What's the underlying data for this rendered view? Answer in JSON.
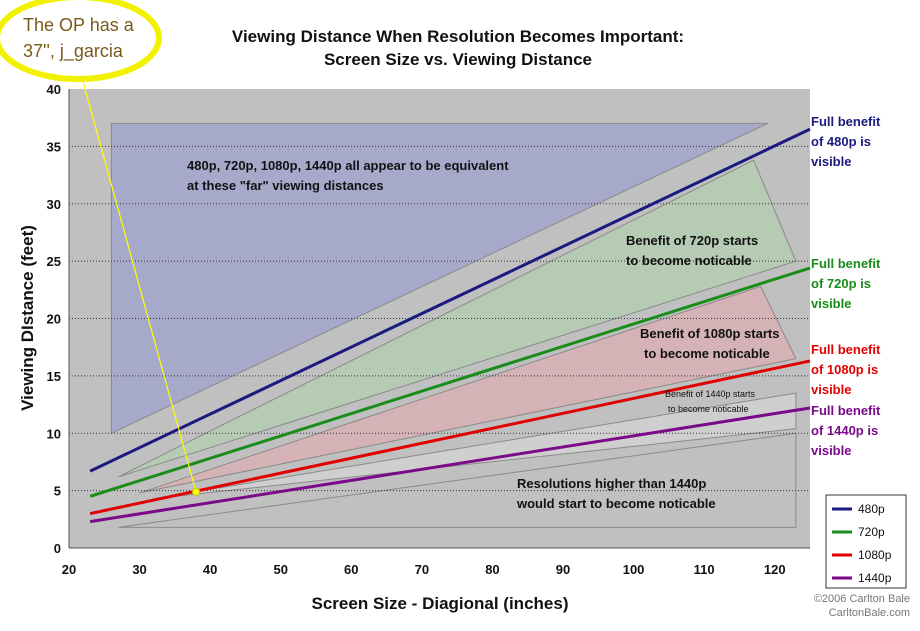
{
  "annotation": {
    "line1": "The OP has a",
    "line2": "37'', j_garcia"
  },
  "credit": {
    "line1": "©2006 Carlton Bale",
    "line2": "CarltonBale.com"
  },
  "region_labels": {
    "far1": "480p, 720p, 1080p, 1440p all appear to be equivalent",
    "far2": "at these \"far\" viewing distances",
    "b720_1": "Benefit of 720p starts",
    "b720_2": "to become noticable",
    "b1080_1": "Benefit of 1080p starts",
    "b1080_2": "to become noticable",
    "b1440_1": "Benefit of 1440p starts",
    "b1440_2": "to become noticable",
    "higher1": "Resolutions higher than 1440p",
    "higher2": "would start to become noticable"
  },
  "line_labels": [
    {
      "series": "480p",
      "lines": [
        "Full benefit",
        "of 480p is",
        "visible"
      ],
      "color": "#1a1a80"
    },
    {
      "series": "720p",
      "lines": [
        "Full benefit",
        "of 720p is",
        "visible"
      ],
      "color": "#1a8c1a"
    },
    {
      "series": "1080p",
      "lines": [
        "Full benefit",
        "of 1080p is",
        "visible"
      ],
      "color": "#e00000"
    },
    {
      "series": "1440p",
      "lines": [
        "Full benefit",
        "of 1440p is",
        "visible"
      ],
      "color": "#7a0a8a"
    }
  ],
  "colors": {
    "plot_bg": "#c0c0c0",
    "far_region": "#a7a9cb",
    "region_720": "#b5cbb4",
    "region_1080": "#d4b2b5",
    "region_1440": "#cfcfcf",
    "annotation": "#ffff00",
    "annotation_text": "#7a5a1a"
  },
  "chart_data": {
    "type": "line",
    "title": "Viewing Distance When Resolution Becomes Important:",
    "subtitle": "Screen Size vs. Viewing Distance",
    "xlabel": "Screen Size - Diagional (inches)",
    "ylabel": "Viewing DIstance (feet)",
    "xlim": [
      20,
      125
    ],
    "ylim": [
      0,
      40
    ],
    "xticks": [
      20,
      30,
      40,
      50,
      60,
      70,
      80,
      90,
      100,
      110,
      120
    ],
    "yticks": [
      0,
      5,
      10,
      15,
      20,
      25,
      30,
      35,
      40
    ],
    "grid": "horizontal dotted",
    "legend_position": "bottom-right",
    "series": [
      {
        "name": "480p",
        "color": "#1a1a80",
        "x": [
          23,
          125
        ],
        "y": [
          6.7,
          36.5
        ]
      },
      {
        "name": "720p",
        "color": "#1a8c1a",
        "x": [
          23,
          125
        ],
        "y": [
          4.5,
          24.4
        ]
      },
      {
        "name": "1080p",
        "color": "#e00000",
        "x": [
          23,
          125
        ],
        "y": [
          3.0,
          16.3
        ]
      },
      {
        "name": "1440p",
        "color": "#7a0a8a",
        "x": [
          23,
          125
        ],
        "y": [
          2.3,
          12.2
        ]
      }
    ],
    "marker": {
      "x": 38,
      "y": 4.9
    }
  }
}
